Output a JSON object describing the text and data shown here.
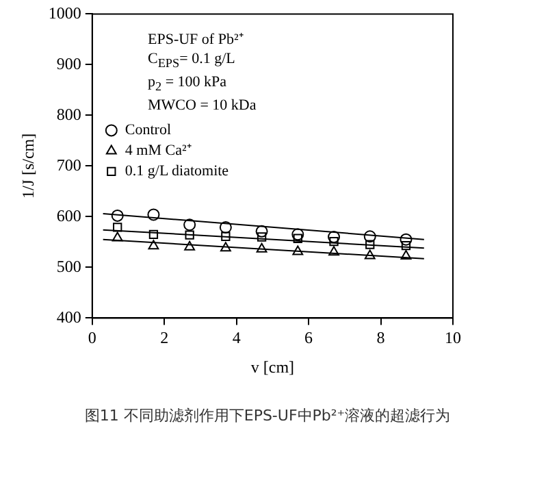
{
  "chart_data": {
    "type": "scatter",
    "xlabel": "v [cm]",
    "ylabel": "1/J [s/cm]",
    "xlim": [
      0,
      10
    ],
    "xticks": [
      0,
      2,
      4,
      6,
      8,
      10
    ],
    "ylim": [
      400,
      1000
    ],
    "yticks": [
      400,
      500,
      600,
      700,
      800,
      900,
      1000
    ],
    "grid": false,
    "legend": "top left",
    "series": [
      {
        "name": "Control",
        "marker": "circle",
        "color": "#000000",
        "x": [
          0.7,
          1.7,
          2.7,
          3.7,
          4.7,
          5.7,
          6.7,
          7.7,
          8.7
        ],
        "values": [
          602,
          604,
          584,
          579,
          571,
          565,
          560,
          561,
          555
        ]
      },
      {
        "name": "4 mM Ca²⁺",
        "marker": "triangle",
        "color": "#000000",
        "x": [
          0.7,
          1.7,
          2.7,
          3.7,
          4.7,
          5.7,
          6.7,
          7.7,
          8.7
        ],
        "values": [
          558,
          542,
          540,
          538,
          536,
          531,
          530,
          523,
          522
        ]
      },
      {
        "name": "0.1 g/L diatomite",
        "marker": "square",
        "color": "#000000",
        "x": [
          0.7,
          1.7,
          2.7,
          3.7,
          4.7,
          5.7,
          6.7,
          7.7,
          8.7
        ],
        "values": [
          579,
          565,
          564,
          561,
          560,
          557,
          551,
          545,
          543
        ]
      },
      {
        "type": "line",
        "marker": "none",
        "color": "#000000",
        "x": [
          0.3,
          9.2
        ],
        "values": [
          606,
          555
        ]
      },
      {
        "type": "line",
        "marker": "none",
        "color": "#000000",
        "x": [
          0.3,
          9.2
        ],
        "values": [
          555,
          517
        ]
      },
      {
        "type": "line",
        "marker": "none",
        "color": "#000000",
        "x": [
          0.3,
          9.2
        ],
        "values": [
          574,
          538
        ]
      }
    ],
    "annotations": [
      "EPS-UF of Pb²⁺",
      "C$_{EPS}$= 0.1 g/L",
      "p$_{2}$ = 100 kPa",
      "MWCO = 10 kDa",
      "图11 不同助滤剂作用下EPS-UF中Pb²⁺溶液的超滤行为"
    ]
  }
}
